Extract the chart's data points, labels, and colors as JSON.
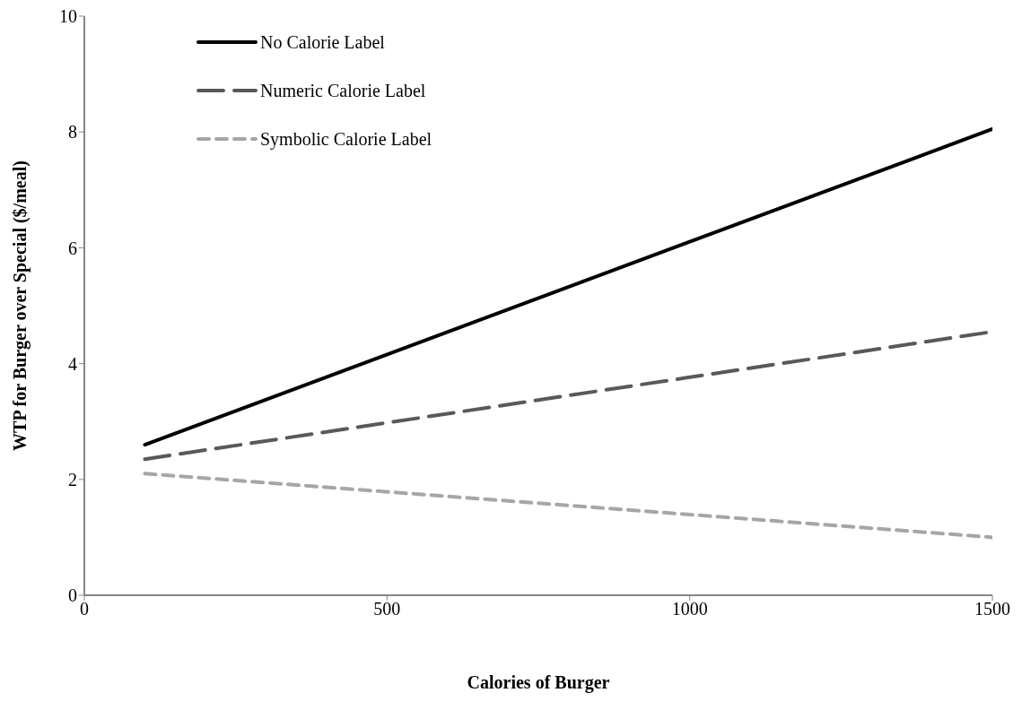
{
  "chart_data": {
    "type": "line",
    "xlabel": "Calories of Burger",
    "ylabel": "WTP for Burger over Special ($/meal)",
    "x": [
      100,
      1500
    ],
    "series": [
      {
        "name": "No Calorie Label",
        "color": "#000000",
        "line_style": "solid",
        "values": [
          2.6,
          8.05
        ]
      },
      {
        "name": "Numeric Calorie Label",
        "color": "#595959",
        "line_style": "dashed",
        "values": [
          2.35,
          4.55
        ]
      },
      {
        "name": "Symbolic Calorie Label",
        "color": "#a6a6a6",
        "line_style": "dotted",
        "values": [
          2.1,
          1.0
        ]
      }
    ],
    "xlim": [
      0,
      1500
    ],
    "xticks": [
      0,
      500,
      1000,
      1500
    ],
    "ylim": [
      0,
      10
    ],
    "yticks": [
      0,
      2,
      4,
      6,
      8,
      10
    ],
    "grid": false,
    "legend": "top left",
    "marker": "none"
  }
}
